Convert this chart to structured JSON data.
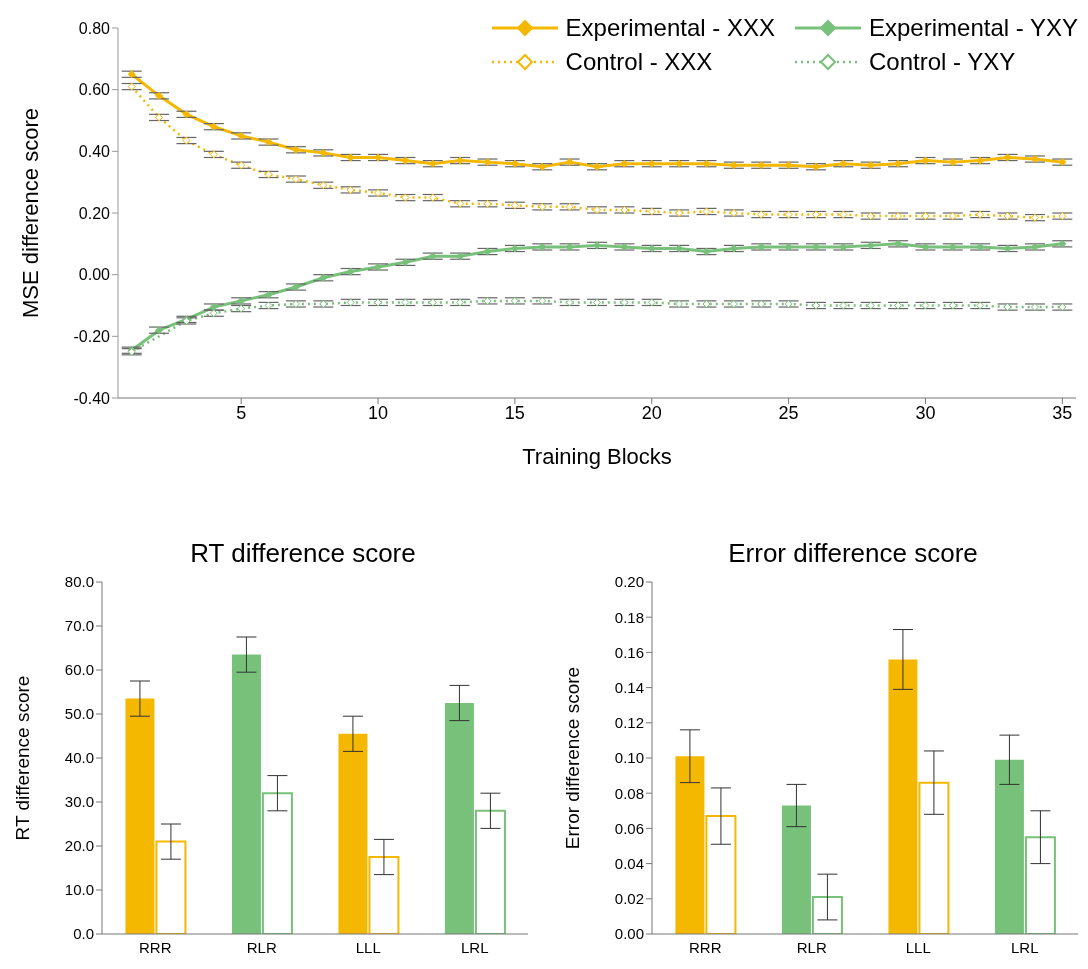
{
  "chart_data": [
    {
      "type": "line",
      "xlabel": "Training Blocks",
      "ylabel": "MSE difference score",
      "x": [
        1,
        2,
        3,
        4,
        5,
        6,
        7,
        8,
        9,
        10,
        11,
        12,
        13,
        14,
        15,
        16,
        17,
        18,
        19,
        20,
        21,
        22,
        23,
        24,
        25,
        26,
        27,
        28,
        29,
        30,
        31,
        32,
        33,
        34,
        35
      ],
      "xlim": [
        0.5,
        35.5
      ],
      "xticks": [
        5,
        10,
        15,
        20,
        25,
        30,
        35
      ],
      "ylim": [
        -0.4,
        0.8
      ],
      "yticks": [
        {
          "value": -0.4,
          "label": "-0.40"
        },
        {
          "value": -0.2,
          "label": "-0.20"
        },
        {
          "value": 0,
          "label": "0.00"
        },
        {
          "value": 0.2,
          "label": "0.20"
        },
        {
          "value": 0.4,
          "label": "0.40"
        },
        {
          "value": 0.6,
          "label": "0.60"
        },
        {
          "value": 0.8,
          "label": "0.80"
        }
      ],
      "marker": "diamond",
      "legend": "top right",
      "series": [
        {
          "name": "Experimental - XXX",
          "color": "#f5b800",
          "line_style": "solid",
          "values": [
            0.65,
            0.58,
            0.52,
            0.48,
            0.45,
            0.43,
            0.405,
            0.395,
            0.38,
            0.38,
            0.37,
            0.36,
            0.37,
            0.365,
            0.36,
            0.35,
            0.365,
            0.35,
            0.36,
            0.36,
            0.36,
            0.36,
            0.355,
            0.355,
            0.355,
            0.35,
            0.36,
            0.355,
            0.36,
            0.37,
            0.365,
            0.37,
            0.38,
            0.375,
            0.365
          ],
          "errors": [
            0.01,
            0.01,
            0.01,
            0.01,
            0.01,
            0.01,
            0.01,
            0.01,
            0.01,
            0.01,
            0.01,
            0.01,
            0.01,
            0.01,
            0.01,
            0.01,
            0.01,
            0.01,
            0.01,
            0.01,
            0.01,
            0.01,
            0.01,
            0.01,
            0.01,
            0.01,
            0.01,
            0.01,
            0.01,
            0.01,
            0.01,
            0.01,
            0.01,
            0.01,
            0.01
          ]
        },
        {
          "name": "Experimental - YXY",
          "color": "#77c17a",
          "line_style": "solid",
          "values": [
            -0.245,
            -0.18,
            -0.145,
            -0.105,
            -0.085,
            -0.065,
            -0.04,
            -0.01,
            0.01,
            0.025,
            0.04,
            0.06,
            0.06,
            0.075,
            0.085,
            0.09,
            0.09,
            0.095,
            0.09,
            0.085,
            0.085,
            0.075,
            0.085,
            0.09,
            0.09,
            0.09,
            0.09,
            0.095,
            0.1,
            0.09,
            0.09,
            0.09,
            0.085,
            0.09,
            0.1
          ],
          "errors": [
            0.01,
            0.01,
            0.01,
            0.01,
            0.01,
            0.01,
            0.01,
            0.01,
            0.01,
            0.01,
            0.01,
            0.01,
            0.01,
            0.01,
            0.01,
            0.01,
            0.01,
            0.01,
            0.01,
            0.01,
            0.01,
            0.01,
            0.01,
            0.01,
            0.01,
            0.01,
            0.01,
            0.01,
            0.01,
            0.01,
            0.01,
            0.01,
            0.01,
            0.01,
            0.01
          ]
        },
        {
          "name": "Control - XXX",
          "color": "#f5b800",
          "line_style": "dotted",
          "values": [
            0.61,
            0.51,
            0.435,
            0.39,
            0.355,
            0.325,
            0.31,
            0.29,
            0.275,
            0.265,
            0.25,
            0.25,
            0.23,
            0.23,
            0.225,
            0.22,
            0.22,
            0.21,
            0.21,
            0.205,
            0.2,
            0.205,
            0.2,
            0.195,
            0.195,
            0.195,
            0.195,
            0.19,
            0.19,
            0.19,
            0.19,
            0.195,
            0.19,
            0.185,
            0.19
          ],
          "errors": [
            0.01,
            0.01,
            0.01,
            0.01,
            0.01,
            0.01,
            0.01,
            0.01,
            0.01,
            0.01,
            0.01,
            0.01,
            0.01,
            0.01,
            0.01,
            0.01,
            0.01,
            0.01,
            0.01,
            0.01,
            0.01,
            0.01,
            0.01,
            0.01,
            0.01,
            0.01,
            0.01,
            0.01,
            0.01,
            0.01,
            0.01,
            0.01,
            0.01,
            0.01,
            0.01
          ]
        },
        {
          "name": "Control - YXY",
          "color": "#77c17a",
          "line_style": "dotted",
          "values": [
            -0.25,
            null,
            -0.15,
            -0.125,
            -0.11,
            -0.1,
            -0.095,
            -0.095,
            -0.09,
            -0.09,
            -0.09,
            -0.09,
            -0.09,
            -0.085,
            -0.085,
            -0.085,
            -0.09,
            -0.09,
            -0.09,
            -0.09,
            -0.095,
            -0.095,
            -0.095,
            -0.095,
            -0.095,
            -0.1,
            -0.1,
            -0.1,
            -0.1,
            -0.1,
            -0.1,
            -0.1,
            -0.105,
            -0.105,
            -0.105
          ],
          "errors": [
            0.01,
            null,
            0.01,
            0.01,
            0.01,
            0.01,
            0.01,
            0.01,
            0.01,
            0.01,
            0.01,
            0.01,
            0.01,
            0.01,
            0.01,
            0.01,
            0.01,
            0.01,
            0.01,
            0.01,
            0.01,
            0.01,
            0.01,
            0.01,
            0.01,
            0.01,
            0.01,
            0.01,
            0.01,
            0.01,
            0.01,
            0.01,
            0.01,
            0.01,
            0.01
          ]
        }
      ]
    },
    {
      "type": "bar",
      "title": "RT difference score",
      "ylabel": "RT difference score",
      "categories": [
        "RRR",
        "RLR",
        "LLL",
        "LRL"
      ],
      "ylim": [
        0,
        80
      ],
      "yticks": [
        {
          "value": 0,
          "label": "0.0"
        },
        {
          "value": 10,
          "label": "10.0"
        },
        {
          "value": 20,
          "label": "20.0"
        },
        {
          "value": 30,
          "label": "30.0"
        },
        {
          "value": 40,
          "label": "40.0"
        },
        {
          "value": 50,
          "label": "50.0"
        },
        {
          "value": 60,
          "label": "60.0"
        },
        {
          "value": 70,
          "label": "70.0"
        },
        {
          "value": 80,
          "label": "80.0"
        }
      ],
      "series": [
        {
          "colors": [
            "#f5b800",
            "#77c17a",
            "#f5b800",
            "#77c17a"
          ],
          "values": [
            53.5,
            63.5,
            45.5,
            52.5
          ],
          "errors": [
            4,
            4,
            4,
            4
          ]
        },
        {
          "colors": [
            "#f5b800",
            "#77c17a",
            "#f5b800",
            "#77c17a"
          ],
          "values": [
            21,
            32,
            17.5,
            28
          ],
          "errors": [
            4,
            4,
            4,
            4
          ]
        }
      ]
    },
    {
      "type": "bar",
      "title": "Error difference score",
      "ylabel": "Error difference score",
      "categories": [
        "RRR",
        "RLR",
        "LLL",
        "LRL"
      ],
      "ylim": [
        0,
        0.2
      ],
      "yticks": [
        {
          "value": 0,
          "label": "0.00"
        },
        {
          "value": 0.02,
          "label": "0.02"
        },
        {
          "value": 0.04,
          "label": "0.04"
        },
        {
          "value": 0.06,
          "label": "0.06"
        },
        {
          "value": 0.08,
          "label": "0.08"
        },
        {
          "value": 0.1,
          "label": "0.10"
        },
        {
          "value": 0.12,
          "label": "0.12"
        },
        {
          "value": 0.14,
          "label": "0.14"
        },
        {
          "value": 0.16,
          "label": "0.16"
        },
        {
          "value": 0.18,
          "label": "0.18"
        },
        {
          "value": 0.2,
          "label": "0.20"
        }
      ],
      "series": [
        {
          "colors": [
            "#f5b800",
            "#77c17a",
            "#f5b800",
            "#77c17a"
          ],
          "values": [
            0.101,
            0.073,
            0.156,
            0.099
          ],
          "errors": [
            0.015,
            0.012,
            0.017,
            0.014
          ]
        },
        {
          "colors": [
            "#f5b800",
            "#77c17a",
            "#f5b800",
            "#77c17a"
          ],
          "values": [
            0.067,
            0.021,
            0.086,
            0.055
          ],
          "errors": [
            0.016,
            0.013,
            0.018,
            0.015
          ]
        }
      ]
    }
  ]
}
